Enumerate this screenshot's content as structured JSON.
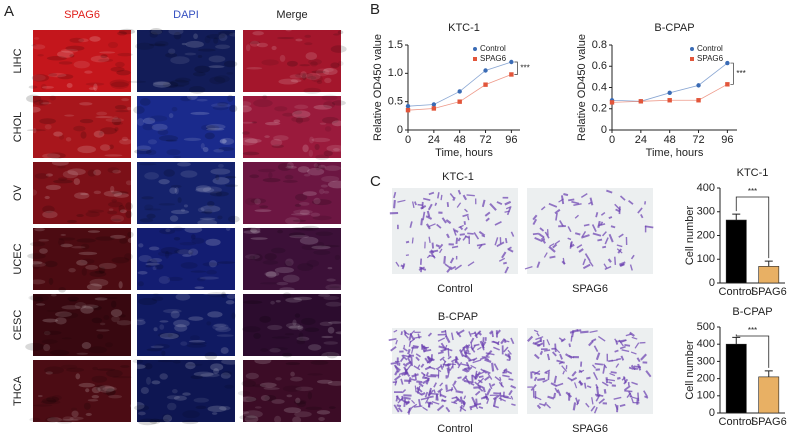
{
  "panel_a": {
    "label": "A",
    "columns": [
      "SPAG6",
      "DAPI",
      "Merge"
    ],
    "rows": [
      "LIHC",
      "CHOL",
      "OV",
      "UCEC",
      "CESC",
      "THCA"
    ]
  },
  "panel_b": {
    "label": "B"
  },
  "panel_c": {
    "label": "C",
    "micrographs": [
      {
        "title": "KTC-1",
        "labels": [
          "Control",
          "SPAG6"
        ]
      },
      {
        "title": "B-CPAP",
        "labels": [
          "Control",
          "SPAG6"
        ]
      }
    ]
  },
  "chart_data": [
    {
      "type": "line",
      "title": "KTC-1",
      "xlabel": "Time, hours",
      "ylabel": "Relative OD450 value",
      "x": [
        0,
        24,
        48,
        72,
        96
      ],
      "xlim": [
        0,
        104
      ],
      "xticks": [
        0,
        24,
        48,
        72,
        96
      ],
      "ylim": [
        0,
        1.5
      ],
      "yticks": [
        0,
        0.5,
        {
          "value": 1,
          "label": "1.0"
        },
        1.5
      ],
      "series": [
        {
          "name": "Control",
          "color": "#3a6bb5",
          "values": [
            0.42,
            0.45,
            0.68,
            1.05,
            1.2
          ]
        },
        {
          "name": "SPAG6",
          "color": "#e2553a",
          "values": [
            0.35,
            0.38,
            0.5,
            0.8,
            0.98
          ]
        }
      ],
      "annotation": "***"
    },
    {
      "type": "line",
      "title": "B-CPAP",
      "xlabel": "Time, hours",
      "ylabel": "Relative OD450 value",
      "x": [
        0,
        24,
        48,
        72,
        96
      ],
      "xlim": [
        0,
        104
      ],
      "xticks": [
        0,
        24,
        48,
        72,
        96
      ],
      "ylim": [
        0,
        0.8
      ],
      "yticks": [
        0,
        0.2,
        0.4,
        0.6,
        0.8
      ],
      "series": [
        {
          "name": "Control",
          "color": "#3a6bb5",
          "values": [
            0.28,
            0.27,
            0.35,
            0.42,
            0.63
          ]
        },
        {
          "name": "SPAG6",
          "color": "#e2553a",
          "values": [
            0.26,
            0.27,
            0.28,
            0.28,
            0.43
          ]
        }
      ],
      "annotation": "***"
    },
    {
      "type": "bar",
      "title": "KTC-1",
      "ylabel": "Cell number",
      "categories": [
        "Control",
        "SPAG6"
      ],
      "values": [
        265,
        70
      ],
      "errors": [
        25,
        22
      ],
      "colors": [
        "#000000",
        "#e8b064"
      ],
      "ylim": [
        0,
        400
      ],
      "yticks": [
        0,
        100,
        200,
        300,
        400
      ],
      "annotation": "***"
    },
    {
      "type": "bar",
      "title": "B-CPAP",
      "ylabel": "Cell number",
      "categories": [
        "Control",
        "SPAG6"
      ],
      "values": [
        400,
        210
      ],
      "errors": [
        40,
        35
      ],
      "colors": [
        "#000000",
        "#e8b064"
      ],
      "ylim": [
        0,
        500
      ],
      "yticks": [
        0,
        100,
        200,
        300,
        400,
        500
      ],
      "annotation": "***"
    }
  ]
}
